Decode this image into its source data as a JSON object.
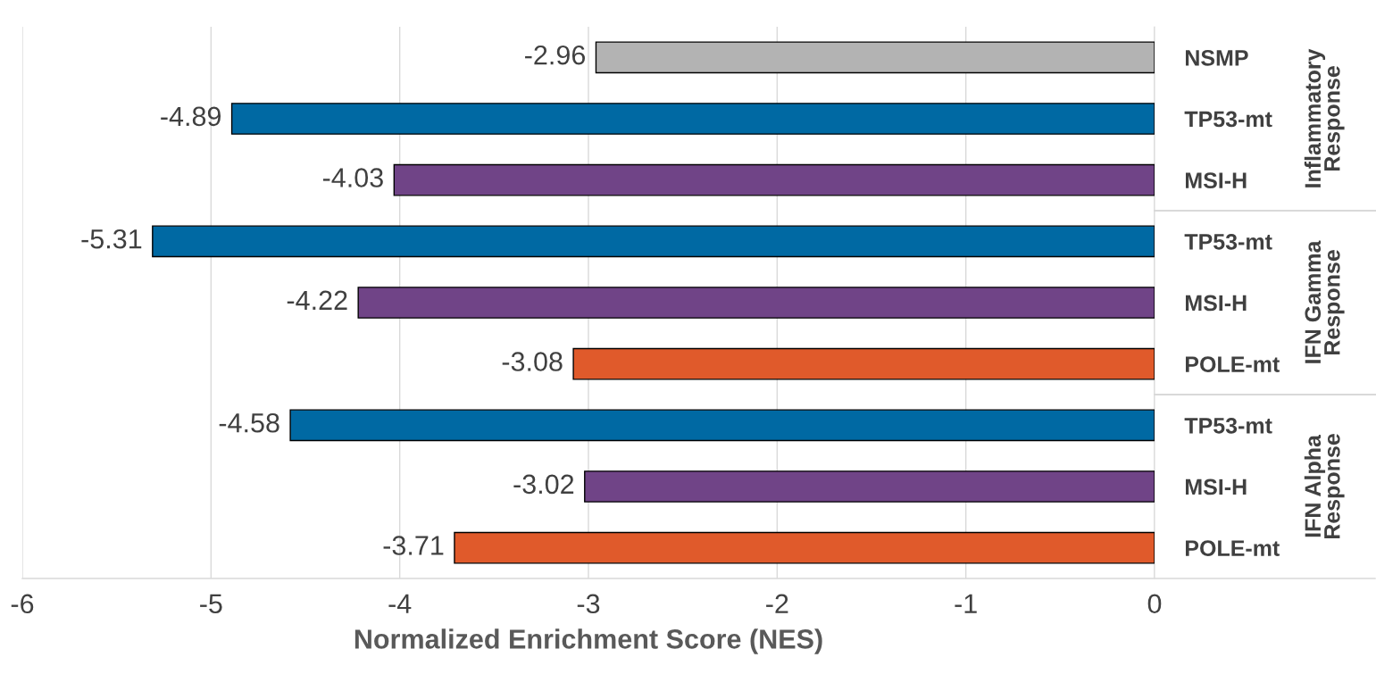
{
  "chart_data": {
    "type": "bar",
    "orientation": "horizontal",
    "categories": [
      "NSMP",
      "TP53-mt",
      "MSI-H",
      "TP53-mt",
      "MSI-H",
      "POLE-mt",
      "TP53-mt",
      "MSI-H",
      "POLE-mt"
    ],
    "values": [
      -2.96,
      -4.89,
      -4.03,
      -5.31,
      -4.22,
      -3.08,
      -4.58,
      -3.02,
      -3.71
    ],
    "colors": [
      "#b3b3b3",
      "#0069a3",
      "#704487",
      "#0069a3",
      "#704487",
      "#e05a2b",
      "#0069a3",
      "#704487",
      "#e05a2b"
    ],
    "xlim": [
      -6,
      0
    ],
    "xticks": [
      -6,
      -5,
      -4,
      -3,
      -2,
      -1,
      0
    ],
    "xlabel": "Normalized Enrichment Score (NES)",
    "annotations": [
      "Inflammatory Response",
      "IFN Gamma Response",
      "IFN Alpha Response"
    ],
    "data_labels": true,
    "grid": "x"
  }
}
